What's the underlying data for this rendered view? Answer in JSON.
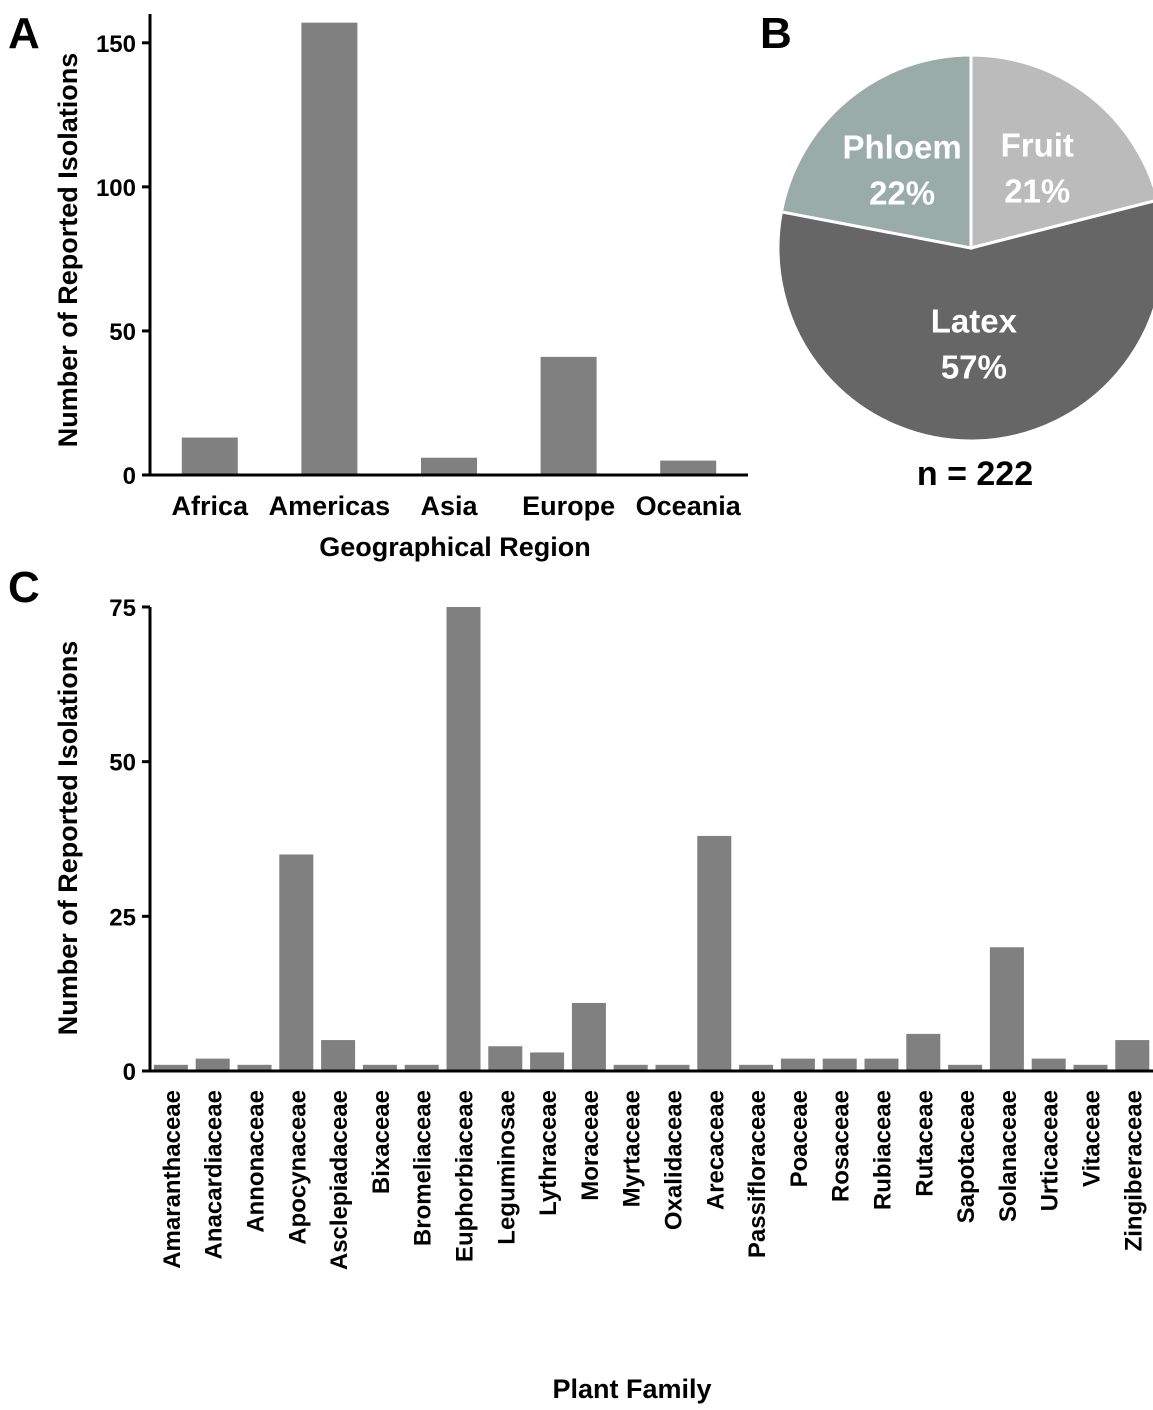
{
  "panels": [
    {
      "letter": "A"
    },
    {
      "letter": "B"
    },
    {
      "letter": "C"
    }
  ],
  "chart_data": [
    {
      "panel": "A",
      "type": "bar",
      "xlabel": "Geographical Region",
      "ylabel": "Number of Reported Isolations",
      "ylim": [
        0,
        160
      ],
      "yticks": [
        0,
        50,
        100,
        150
      ],
      "categories": [
        "Africa",
        "Americas",
        "Asia",
        "Europe",
        "Oceania"
      ],
      "values": [
        13,
        157,
        6,
        41,
        5
      ],
      "bar_color": "#808080",
      "grid": false
    },
    {
      "panel": "B",
      "type": "pie",
      "slices": [
        {
          "label": "Fruit",
          "pct_text": "21%",
          "value": 21,
          "color": "#bbbbbb"
        },
        {
          "label": "Latex",
          "pct_text": "57%",
          "value": 57,
          "color": "#666666"
        },
        {
          "label": "Phloem",
          "pct_text": "22%",
          "value": 22,
          "color": "#9aaca8"
        }
      ],
      "note": "n = 222"
    },
    {
      "panel": "C",
      "type": "bar",
      "xlabel": "Plant Family",
      "ylabel": "Number of Reported Isolations",
      "ylim": [
        0,
        75
      ],
      "yticks": [
        0,
        25,
        50,
        75
      ],
      "categories": [
        "Amaranthaceae",
        "Anacardiaceae",
        "Annonaceae",
        "Apocynaceae",
        "Asclepiadaceae",
        "Bixaceae",
        "Bromeliaceae",
        "Euphorbiaceae",
        "Leguminosae",
        "Lythraceae",
        "Moraceae",
        "Myrtaceae",
        "Oxalidaceae",
        "Arecaceae",
        "Passifloraceae",
        "Poaceae",
        "Rosaceae",
        "Rubiaceae",
        "Rutaceae",
        "Sapotaceae",
        "Solanaceae",
        "Urticaceae",
        "Vitaceae",
        "Zingiberaceae"
      ],
      "values": [
        1,
        2,
        1,
        35,
        5,
        1,
        1,
        75,
        4,
        3,
        11,
        1,
        1,
        38,
        1,
        2,
        2,
        2,
        6,
        1,
        20,
        2,
        1,
        5
      ],
      "bar_color": "#808080",
      "grid": false
    }
  ]
}
